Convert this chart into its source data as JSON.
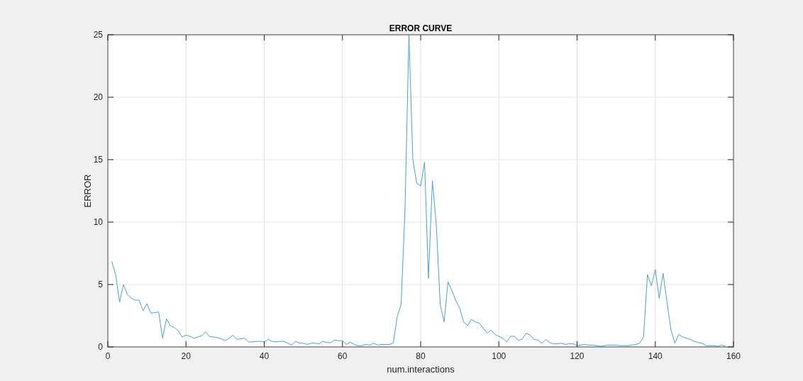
{
  "chart_data": {
    "type": "line",
    "title": "ERROR CURVE",
    "xlabel": "num.interactions",
    "ylabel": "ERROR",
    "xlim": [
      0,
      160
    ],
    "xticks": [
      0,
      20,
      40,
      60,
      80,
      100,
      120,
      140,
      160
    ],
    "ylim": [
      0,
      25
    ],
    "yticks": [
      0,
      5,
      10,
      15,
      20,
      25
    ],
    "grid": true,
    "marker": "none",
    "line_style": "solid",
    "series": [
      {
        "color": "#4a9fd8",
        "x": [
          1,
          2,
          3,
          4,
          5,
          6,
          7,
          8,
          9,
          10,
          11,
          12,
          13,
          14,
          15,
          16,
          17,
          18,
          19,
          20,
          21,
          22,
          23,
          24,
          25,
          26,
          27,
          28,
          29,
          30,
          31,
          32,
          33,
          34,
          35,
          36,
          37,
          38,
          39,
          40,
          41,
          42,
          43,
          44,
          45,
          46,
          47,
          48,
          49,
          50,
          51,
          52,
          53,
          54,
          55,
          56,
          57,
          58,
          59,
          60,
          61,
          62,
          63,
          64,
          65,
          66,
          67,
          68,
          69,
          70,
          71,
          72,
          73,
          74,
          75,
          76,
          77,
          78,
          79,
          80,
          81,
          82,
          83,
          84,
          85,
          86,
          87,
          88,
          89,
          90,
          91,
          92,
          93,
          94,
          95,
          96,
          97,
          98,
          99,
          100,
          101,
          102,
          103,
          104,
          105,
          106,
          107,
          108,
          109,
          110,
          111,
          112,
          113,
          114,
          115,
          116,
          117,
          118,
          119,
          120,
          121,
          122,
          123,
          124,
          125,
          126,
          127,
          128,
          129,
          130,
          131,
          132,
          133,
          134,
          135,
          136,
          137,
          138,
          139,
          140,
          141,
          142,
          143,
          144,
          145,
          146,
          147,
          148,
          149,
          150,
          151,
          152,
          153,
          154,
          155,
          156,
          157,
          158
        ],
        "values": [
          6.85,
          5.8,
          3.6,
          5.0,
          4.2,
          3.9,
          3.75,
          3.75,
          2.9,
          3.45,
          2.7,
          2.75,
          2.8,
          0.7,
          2.25,
          1.7,
          1.55,
          1.3,
          0.8,
          0.95,
          0.85,
          0.7,
          0.8,
          0.9,
          1.2,
          0.85,
          0.8,
          0.75,
          0.65,
          0.5,
          0.7,
          0.95,
          0.6,
          0.65,
          0.7,
          0.4,
          0.4,
          0.45,
          0.45,
          0.4,
          0.6,
          0.45,
          0.4,
          0.45,
          0.45,
          0.3,
          0.15,
          0.45,
          0.3,
          0.3,
          0.2,
          0.3,
          0.3,
          0.25,
          0.45,
          0.35,
          0.35,
          0.55,
          0.5,
          0.5,
          0.2,
          0.4,
          0.2,
          0.1,
          0.1,
          0.2,
          0.15,
          0.3,
          0.15,
          0.2,
          0.2,
          0.2,
          0.3,
          2.4,
          3.4,
          11,
          25,
          15,
          13.1,
          12.9,
          14.8,
          5.5,
          13.3,
          9.8,
          3.4,
          2.0,
          5.2,
          4.5,
          3.7,
          3.1,
          2.0,
          1.7,
          2.2,
          2.0,
          1.9,
          1.5,
          1.1,
          1.35,
          1.0,
          0.85,
          0.7,
          0.4,
          0.85,
          0.85,
          0.5,
          0.65,
          1.1,
          0.95,
          0.6,
          0.55,
          0.3,
          0.6,
          0.35,
          0.25,
          0.25,
          0.3,
          0.2,
          0.25,
          0.25,
          0.1,
          0.15,
          0.2,
          0.15,
          0.15,
          0.1,
          0.05,
          0.1,
          0.15,
          0.15,
          0.15,
          0.1,
          0.1,
          0.1,
          0.15,
          0.2,
          0.3,
          0.8,
          5.8,
          4.9,
          6.2,
          3.9,
          5.9,
          3.6,
          1.4,
          0.3,
          1.0,
          0.8,
          0.7,
          0.6,
          0.45,
          0.35,
          0.3,
          0.1,
          0.1,
          0.1,
          0.05,
          0.15,
          0.05
        ]
      }
    ]
  }
}
